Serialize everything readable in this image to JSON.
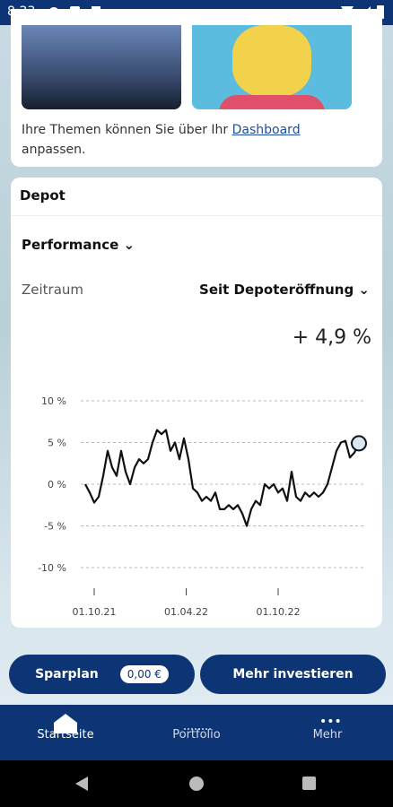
{
  "status_bar": {
    "time": "8:23"
  },
  "themes_card": {
    "text": "Ihre Themen können Sie über Ihr",
    "link": "Dashboard",
    "text_end": "anpassen."
  },
  "depot": {
    "title": "Depot",
    "performance": "Performance",
    "period_label": "Zeitraum",
    "period_value": "Seit Depoteröffnung",
    "change": "+ 4,9 %"
  },
  "chart_data": {
    "type": "line",
    "color": "#111111",
    "grid": true,
    "values": [
      0,
      -1,
      -2.2,
      -1.5,
      1,
      4,
      2,
      1,
      4,
      1.5,
      0,
      2,
      3,
      2.5,
      3,
      5,
      6.5,
      6,
      6.5,
      4,
      5,
      3,
      5.5,
      3,
      -0.5,
      -1,
      -2,
      -1.5,
      -2,
      -1,
      -3,
      -3,
      -2.5,
      -3,
      -2.5,
      -3.5,
      -5,
      -3,
      -2,
      -2.5,
      0,
      -0.5,
      0,
      -1,
      -0.5,
      -2,
      1.5,
      -1.5,
      -2,
      -1,
      -1.5,
      -1,
      -1.5,
      -1,
      0,
      2,
      4,
      5,
      5.2,
      3.2,
      3.8,
      4.9
    ],
    "xlim": [
      0,
      61
    ],
    "xticks": [
      {
        "value": 2,
        "label": "01.10.21"
      },
      {
        "value": 22.5,
        "label": "01.04.22"
      },
      {
        "value": 43,
        "label": "01.10.22"
      }
    ],
    "ylim": [
      -10,
      10
    ],
    "yticks": [
      {
        "value": 10,
        "label": "10 %"
      },
      {
        "value": 5,
        "label": "5 %"
      },
      {
        "value": 0,
        "label": "0 %"
      },
      {
        "value": -5,
        "label": "-5 %"
      },
      {
        "value": -10,
        "label": "-10 %"
      }
    ]
  },
  "buttons": {
    "savings_plan": "Sparplan",
    "savings_amount": "0,00 €",
    "invest": "Mehr investieren"
  },
  "nav": {
    "home": "Startseite",
    "portfolio": "Portfolio",
    "more": "Mehr"
  }
}
